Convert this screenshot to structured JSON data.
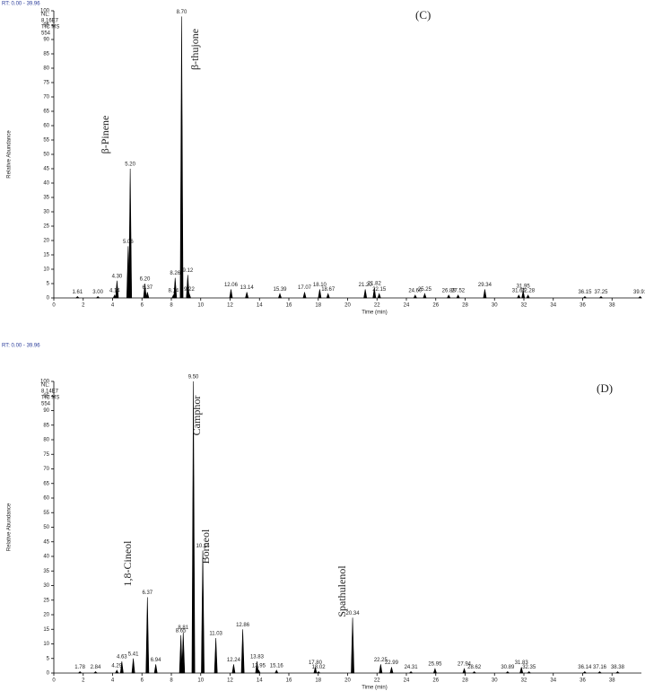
{
  "chart_data": [
    {
      "type": "chromatogram",
      "header": "RT: 0.00 - 39.96",
      "info": [
        "NL:",
        "8.16E7",
        "TIC MS",
        "554"
      ],
      "panel_label": "(C)",
      "x_label": "Time (min)",
      "y_label": "Relative Abundance",
      "annotations": [
        "β-Pinene",
        "β-thujone"
      ],
      "x": [
        1.61,
        3.0,
        4.14,
        4.3,
        5.06,
        5.2,
        6.2,
        6.37,
        8.14,
        8.26,
        8.7,
        9.12,
        9.22,
        12.06,
        13.14,
        15.39,
        17.07,
        18.1,
        18.67,
        21.2,
        21.82,
        22.15,
        24.6,
        25.25,
        26.88,
        27.52,
        29.34,
        31.65,
        31.95,
        32.28,
        36.15,
        37.25,
        39.91
      ],
      "x_labels": [
        "1.61",
        "3.00",
        "4.14",
        "4.30",
        "5.06",
        "5.20",
        "6.20",
        "6.37",
        "8.14",
        "8.26",
        "8.70",
        "9.12",
        "9.22",
        "12.06",
        "13.14",
        "15.39",
        "17.07",
        "18.10",
        "18.67",
        "21.20",
        "21.82",
        "22.15",
        "24.60",
        "25.25",
        "26.88",
        "27.52",
        "29.34",
        "31.65",
        "31.95",
        "32.28",
        "36.15",
        "37.25",
        "39.91"
      ],
      "values": [
        0.5,
        0.5,
        1,
        6,
        18,
        45,
        5,
        2,
        1,
        7,
        98,
        8,
        1.5,
        3,
        2,
        1.5,
        2,
        3,
        1.5,
        3,
        3.5,
        1.5,
        1,
        1.5,
        1,
        1,
        3,
        1,
        2.5,
        1,
        0.5,
        0.5,
        0.5
      ],
      "xlim": [
        0,
        40
      ],
      "xticks": [
        0,
        2,
        4,
        6,
        8,
        10,
        12,
        14,
        16,
        18,
        20,
        22,
        24,
        26,
        28,
        30,
        32,
        34,
        36,
        38
      ],
      "ylim": [
        0,
        100
      ],
      "yticks": [
        0,
        5,
        10,
        15,
        20,
        25,
        30,
        35,
        40,
        45,
        50,
        55,
        60,
        65,
        70,
        75,
        80,
        85,
        90,
        95,
        100
      ],
      "color": "#000000"
    },
    {
      "type": "chromatogram",
      "header": "RT: 0.00 - 39.96",
      "info": [
        "NL:",
        "8.14E7",
        "TIC MS",
        "554"
      ],
      "panel_label": "(D)",
      "x_label": "Time (min)",
      "y_label": "Relative Abundance",
      "annotations": [
        "1,8-Cineol",
        "Camphor",
        "Borneol",
        "Spathulenol"
      ],
      "x": [
        1.78,
        2.84,
        4.29,
        4.63,
        5.41,
        6.37,
        6.94,
        8.65,
        8.81,
        9.5,
        10.14,
        11.03,
        12.24,
        12.86,
        13.83,
        13.95,
        15.16,
        17.8,
        18.02,
        20.34,
        22.25,
        22.99,
        24.31,
        25.95,
        27.94,
        28.62,
        30.89,
        31.83,
        32.35,
        36.14,
        37.16,
        38.38
      ],
      "x_labels": [
        "1.78",
        "2.84",
        "4.29",
        "4.63",
        "5.41",
        "6.37",
        "6.94",
        "8.65",
        "8.81",
        "9.50",
        "10.14",
        "11.03",
        "12.24",
        "12.86",
        "13.83",
        "13.95",
        "15.16",
        "17.80",
        "18.02",
        "20.34",
        "22.25",
        "22.99",
        "24.31",
        "25.95",
        "27.94",
        "28.62",
        "30.89",
        "31.83",
        "32.35",
        "36.14",
        "37.16",
        "38.38"
      ],
      "values": [
        0.5,
        0.5,
        1,
        4,
        5,
        26,
        3,
        13,
        14,
        100,
        42,
        12,
        3,
        15,
        4,
        1,
        1,
        2,
        0.5,
        19,
        3,
        2,
        0.5,
        1.5,
        1.5,
        0.5,
        0.5,
        2,
        0.5,
        0.5,
        0.5,
        0.5
      ],
      "xlim": [
        0,
        40
      ],
      "xticks": [
        0,
        2,
        4,
        6,
        8,
        10,
        12,
        14,
        16,
        18,
        20,
        22,
        24,
        26,
        28,
        30,
        32,
        34,
        36,
        38
      ],
      "ylim": [
        0,
        100
      ],
      "yticks": [
        0,
        5,
        10,
        15,
        20,
        25,
        30,
        35,
        40,
        45,
        50,
        55,
        60,
        65,
        70,
        75,
        80,
        85,
        90,
        95,
        100
      ],
      "color": "#000000"
    }
  ]
}
